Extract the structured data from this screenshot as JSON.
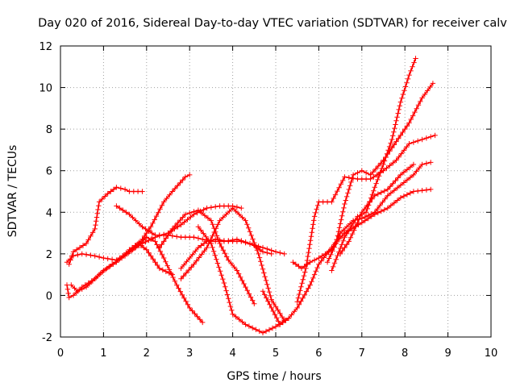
{
  "chart_data": {
    "type": "scatter",
    "title": "Day 020 of 2016, Sidereal Day-to-day VTEC variation (SDTVAR) for receiver calv",
    "xlabel": "GPS time / hours",
    "ylabel": "SDTVAR / TECUs",
    "xlim": [
      0,
      10
    ],
    "ylim": [
      -2,
      12
    ],
    "xticks": [
      0,
      1,
      2,
      3,
      4,
      5,
      6,
      7,
      8,
      9,
      10
    ],
    "yticks": [
      -2,
      0,
      2,
      4,
      6,
      8,
      10,
      12
    ],
    "grid": true,
    "marker": "+",
    "color": "#ff0000",
    "series": [
      {
        "x": [
          0.15,
          0.3,
          0.5,
          0.8,
          1.0,
          1.3,
          1.6,
          1.9,
          2.1,
          2.4,
          2.6,
          2.9,
          3.0
        ],
        "y": [
          1.6,
          1.9,
          2.0,
          1.9,
          1.8,
          1.7,
          2.1,
          2.7,
          3.3,
          4.5,
          5.0,
          5.7,
          5.8
        ]
      },
      {
        "x": [
          0.2,
          0.3,
          0.45,
          0.6,
          0.8,
          0.9,
          1.1,
          1.3,
          1.5,
          1.6,
          1.8,
          1.9
        ],
        "y": [
          1.5,
          2.1,
          2.3,
          2.5,
          3.2,
          4.5,
          4.9,
          5.2,
          5.1,
          5.0,
          5.0,
          5.0
        ]
      },
      {
        "x": [
          0.25,
          0.4,
          0.6,
          0.9,
          1.2,
          1.5,
          1.8,
          2.0,
          2.2,
          2.4,
          2.7,
          3.0,
          3.3
        ],
        "y": [
          0.5,
          0.2,
          0.4,
          1.0,
          1.5,
          1.9,
          2.4,
          2.8,
          2.6,
          1.8,
          0.5,
          -0.6,
          -1.3
        ]
      },
      {
        "x": [
          0.15,
          0.2,
          0.3,
          0.5,
          0.8,
          1.0,
          1.3,
          1.6,
          1.8,
          2.0,
          2.3,
          2.6
        ],
        "y": [
          0.5,
          -0.1,
          0.0,
          0.4,
          0.8,
          1.2,
          1.6,
          2.2,
          2.5,
          2.2,
          1.3,
          1.0
        ]
      },
      {
        "x": [
          1.3,
          1.6,
          1.9,
          2.2,
          2.5,
          2.8,
          3.1,
          3.5,
          3.8,
          4.1,
          4.4,
          4.7,
          5.0,
          5.2
        ],
        "y": [
          4.3,
          3.9,
          3.3,
          2.9,
          2.9,
          2.8,
          2.8,
          2.6,
          2.6,
          2.7,
          2.5,
          2.3,
          2.1,
          2.0
        ]
      },
      {
        "x": [
          1.6,
          1.9,
          2.2,
          2.5,
          2.8,
          3.1,
          3.4,
          3.7,
          4.0,
          4.2
        ],
        "y": [
          2.1,
          2.5,
          2.8,
          3.0,
          3.4,
          3.9,
          4.2,
          4.3,
          4.3,
          4.2
        ]
      },
      {
        "x": [
          2.3,
          2.6,
          2.9,
          3.2,
          3.5,
          3.7,
          3.9,
          4.1,
          4.3,
          4.5
        ],
        "y": [
          2.3,
          3.2,
          3.9,
          4.1,
          3.6,
          2.5,
          1.7,
          1.2,
          0.4,
          -0.4
        ]
      },
      {
        "x": [
          2.8,
          3.0,
          3.2,
          3.4,
          3.6,
          3.9,
          4.2,
          4.5,
          4.7,
          4.9
        ],
        "y": [
          1.3,
          1.8,
          2.3,
          2.6,
          2.7,
          2.6,
          2.6,
          2.4,
          2.1,
          2.0
        ]
      },
      {
        "x": [
          2.8,
          3.1,
          3.4,
          3.7,
          4.0,
          4.3,
          4.6,
          4.9,
          5.2
        ],
        "y": [
          0.8,
          1.5,
          2.3,
          3.6,
          4.2,
          3.6,
          2.0,
          -0.2,
          -1.2
        ]
      },
      {
        "x": [
          3.2,
          3.5,
          3.8,
          4.0,
          4.3,
          4.7,
          5.0,
          5.3
        ],
        "y": [
          3.3,
          2.5,
          0.6,
          -0.9,
          -1.4,
          -1.8,
          -1.5,
          -1.1
        ]
      },
      {
        "x": [
          4.7,
          4.9,
          5.1,
          5.3,
          5.5,
          5.8,
          6.0,
          6.3,
          6.6,
          7.0,
          7.3,
          7.6,
          7.9,
          8.2,
          8.6
        ],
        "y": [
          0.2,
          -0.6,
          -1.4,
          -1.1,
          -0.6,
          0.5,
          1.5,
          2.3,
          3.0,
          3.5,
          3.9,
          4.2,
          4.7,
          5.0,
          5.1
        ]
      },
      {
        "x": [
          5.4,
          5.6,
          5.8,
          6.0,
          6.3,
          6.5,
          6.8,
          7.0,
          7.3,
          7.6,
          7.9,
          8.2,
          8.4,
          8.6
        ],
        "y": [
          1.6,
          1.3,
          1.6,
          1.8,
          2.2,
          3.0,
          3.6,
          3.7,
          4.0,
          4.8,
          5.3,
          5.8,
          6.3,
          6.4
        ]
      },
      {
        "x": [
          5.5,
          5.7,
          5.9,
          6.0,
          6.3,
          6.6,
          6.9,
          7.2,
          7.5,
          7.8,
          8.1,
          8.4,
          8.7
        ],
        "y": [
          -0.3,
          1.3,
          3.8,
          4.5,
          4.5,
          5.7,
          5.6,
          5.6,
          6.0,
          6.5,
          7.3,
          7.5,
          7.7
        ]
      },
      {
        "x": [
          6.5,
          6.7,
          6.9,
          7.0,
          7.3,
          7.6,
          7.9,
          8.2
        ],
        "y": [
          2.0,
          2.6,
          3.5,
          4.0,
          4.8,
          5.1,
          5.8,
          6.3
        ]
      },
      {
        "x": [
          6.2,
          6.4,
          6.6,
          6.8,
          7.0,
          7.2,
          7.5,
          7.8,
          8.1,
          8.4,
          8.65
        ],
        "y": [
          1.6,
          2.5,
          4.4,
          5.8,
          6.0,
          5.8,
          6.5,
          7.4,
          8.3,
          9.5,
          10.2
        ]
      },
      {
        "x": [
          6.3,
          6.6,
          6.9,
          7.1,
          7.3,
          7.5,
          7.7,
          7.9,
          8.1,
          8.25
        ],
        "y": [
          1.2,
          2.8,
          3.8,
          4.0,
          5.2,
          6.3,
          7.5,
          9.3,
          10.6,
          11.4
        ]
      }
    ]
  }
}
